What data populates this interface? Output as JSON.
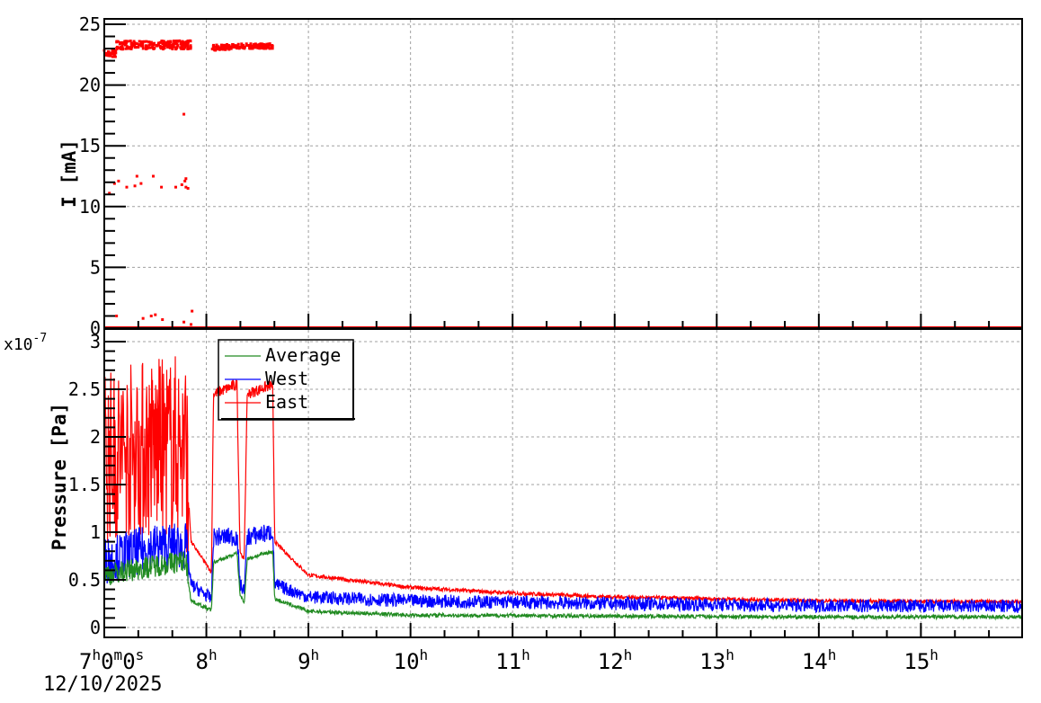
{
  "chart_data": [
    {
      "type": "scatter",
      "panel": "top",
      "title": "",
      "xlabel": "",
      "ylabel": "I [mA]",
      "ylim": [
        0,
        25
      ],
      "yticks": [
        0,
        5,
        10,
        15,
        20,
        25
      ],
      "xlim_hours": [
        7,
        16
      ],
      "grid": true,
      "series": [
        {
          "name": "Current",
          "color": "#ff0000",
          "segments": [
            {
              "x_start": 7.0,
              "x_end": 7.12,
              "level": 22.6,
              "noise": 0.3
            },
            {
              "x_start": 7.12,
              "x_end": 7.85,
              "level": 23.3,
              "noise": 0.35
            },
            {
              "x_start": 8.05,
              "x_end": 8.25,
              "level": 23.1,
              "noise": 0.25
            },
            {
              "x_start": 8.25,
              "x_end": 8.65,
              "level": 23.2,
              "noise": 0.2
            },
            {
              "x_start": 7.0,
              "x_end": 16.0,
              "level": 0.0,
              "noise": 0.0
            }
          ],
          "outliers": [
            [
              7.78,
              17.6
            ],
            [
              7.05,
              11.1
            ],
            [
              7.1,
              11.9
            ],
            [
              7.14,
              12.1
            ],
            [
              7.22,
              11.6
            ],
            [
              7.3,
              11.7
            ],
            [
              7.32,
              12.5
            ],
            [
              7.36,
              11.9
            ],
            [
              7.48,
              12.5
            ],
            [
              7.56,
              11.6
            ],
            [
              7.7,
              11.6
            ],
            [
              7.76,
              11.8
            ],
            [
              7.79,
              12.1
            ],
            [
              7.8,
              12.3
            ],
            [
              7.8,
              11.6
            ],
            [
              7.82,
              11.5
            ],
            [
              7.12,
              1.0
            ],
            [
              7.38,
              0.8
            ],
            [
              7.46,
              1.0
            ],
            [
              7.5,
              1.1
            ],
            [
              7.57,
              0.7
            ],
            [
              7.78,
              0.5
            ],
            [
              7.86,
              1.4
            ],
            [
              7.85,
              0.3
            ]
          ]
        }
      ]
    },
    {
      "type": "line",
      "panel": "bottom",
      "title": "",
      "xlabel": "",
      "ylabel": "Pressure [Pa]",
      "y_multiplier": "x10^-7",
      "ylim": [
        0,
        3
      ],
      "yticks": [
        0,
        0.5,
        1,
        1.5,
        2,
        2.5,
        3
      ],
      "xlim_hours": [
        7,
        16
      ],
      "xticks": [
        "7h0m0s 12/10/2025",
        "8h",
        "9h",
        "10h",
        "11h",
        "12h",
        "13h",
        "14h",
        "15h"
      ],
      "grid": true,
      "legend_position": "upper-left",
      "series": [
        {
          "name": "Average",
          "color": "#228b22",
          "points_hours": [
            [
              7.0,
              0.55
            ],
            [
              7.5,
              0.65
            ],
            [
              7.8,
              0.7
            ],
            [
              7.85,
              0.28
            ],
            [
              8.05,
              0.18
            ],
            [
              8.07,
              0.68
            ],
            [
              8.3,
              0.78
            ],
            [
              8.33,
              0.35
            ],
            [
              8.37,
              0.25
            ],
            [
              8.4,
              0.72
            ],
            [
              8.65,
              0.8
            ],
            [
              8.67,
              0.3
            ],
            [
              9.0,
              0.17
            ],
            [
              10.0,
              0.13
            ],
            [
              12.0,
              0.12
            ],
            [
              14.0,
              0.11
            ],
            [
              16.0,
              0.11
            ]
          ],
          "noise": 0.02
        },
        {
          "name": "West",
          "color": "#0000ff",
          "points_hours": [
            [
              7.0,
              0.7
            ],
            [
              7.5,
              0.85
            ],
            [
              7.8,
              0.85
            ],
            [
              7.85,
              0.45
            ],
            [
              8.05,
              0.3
            ],
            [
              8.07,
              0.95
            ],
            [
              8.3,
              0.95
            ],
            [
              8.33,
              0.45
            ],
            [
              8.37,
              0.38
            ],
            [
              8.4,
              0.95
            ],
            [
              8.65,
              1.0
            ],
            [
              8.67,
              0.45
            ],
            [
              9.0,
              0.32
            ],
            [
              10.0,
              0.28
            ],
            [
              12.0,
              0.25
            ],
            [
              14.0,
              0.23
            ],
            [
              16.0,
              0.22
            ]
          ],
          "noise": 0.07
        },
        {
          "name": "East",
          "color": "#ff0000",
          "points_hours": [
            [
              7.0,
              1.8
            ],
            [
              7.5,
              1.9
            ],
            [
              7.8,
              1.9
            ],
            [
              7.85,
              0.9
            ],
            [
              8.05,
              0.58
            ],
            [
              8.07,
              2.45
            ],
            [
              8.3,
              2.55
            ],
            [
              8.33,
              0.8
            ],
            [
              8.37,
              0.7
            ],
            [
              8.4,
              2.45
            ],
            [
              8.65,
              2.55
            ],
            [
              8.67,
              0.9
            ],
            [
              9.0,
              0.55
            ],
            [
              10.0,
              0.42
            ],
            [
              11.0,
              0.36
            ],
            [
              12.0,
              0.32
            ],
            [
              14.0,
              0.28
            ],
            [
              16.0,
              0.27
            ]
          ],
          "noise": 0.02
        }
      ]
    }
  ],
  "top_panel": {
    "ylabel": "I [mA]",
    "ytick_labels": [
      "0",
      "5",
      "10",
      "15",
      "20",
      "25"
    ]
  },
  "bottom_panel": {
    "ylabel": "Pressure [Pa]",
    "multiplier": "x10",
    "multiplier_exp": "-7",
    "ytick_labels": [
      "0",
      "0.5",
      "1",
      "1.5",
      "2",
      "2.5",
      "3"
    ]
  },
  "x_axis": {
    "first_label": {
      "h": "7",
      "m": "0",
      "s": "0"
    },
    "date": "12/10/2025",
    "hour_labels": [
      "8",
      "9",
      "10",
      "11",
      "12",
      "13",
      "14",
      "15"
    ],
    "hour_suffix": "h",
    "minute_suffix": "m",
    "second_suffix": "s"
  },
  "legend": {
    "items": [
      {
        "label": "Average",
        "color": "#228b22"
      },
      {
        "label": "West",
        "color": "#0000ff"
      },
      {
        "label": "East",
        "color": "#ff0000"
      }
    ]
  },
  "colors": {
    "grid": "#a0a0a0",
    "axis": "#000000"
  }
}
